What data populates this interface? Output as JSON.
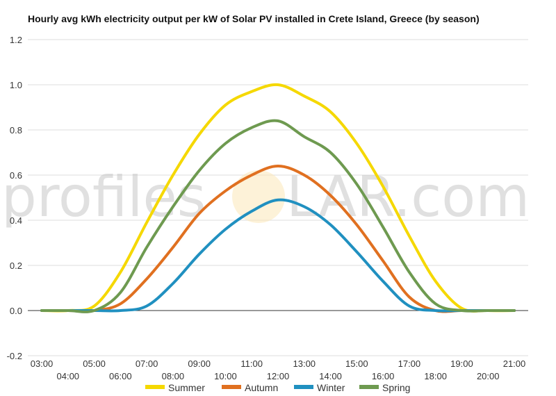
{
  "chart_data": {
    "type": "line",
    "title": "Hourly avg kWh electricity output per kW of Solar PV installed in Crete Island, Greece (by season)",
    "xlabel": "",
    "ylabel": "",
    "ylim": [
      -0.2,
      1.2
    ],
    "yticks": [
      "-0.2",
      "0.0",
      "0.2",
      "0.4",
      "0.6",
      "0.8",
      "1.0",
      "1.2"
    ],
    "x": [
      "03:00",
      "04:00",
      "05:00",
      "06:00",
      "07:00",
      "08:00",
      "09:00",
      "10:00",
      "11:00",
      "12:00",
      "13:00",
      "14:00",
      "15:00",
      "16:00",
      "17:00",
      "18:00",
      "19:00",
      "20:00",
      "21:00"
    ],
    "grid": true,
    "legend": "bottom",
    "series": [
      {
        "name": "Summer",
        "color": "#f5d800",
        "values": [
          0.0,
          0.0,
          0.02,
          0.17,
          0.39,
          0.6,
          0.78,
          0.91,
          0.97,
          1.0,
          0.95,
          0.88,
          0.74,
          0.55,
          0.33,
          0.13,
          0.01,
          0.0,
          0.0
        ]
      },
      {
        "name": "Autumn",
        "color": "#e07020",
        "values": [
          0.0,
          0.0,
          0.0,
          0.03,
          0.14,
          0.28,
          0.43,
          0.53,
          0.6,
          0.64,
          0.6,
          0.51,
          0.38,
          0.22,
          0.06,
          0.0,
          0.0,
          0.0,
          0.0
        ]
      },
      {
        "name": "Winter",
        "color": "#2090c0",
        "values": [
          0.0,
          0.0,
          0.0,
          0.0,
          0.02,
          0.12,
          0.25,
          0.36,
          0.44,
          0.49,
          0.46,
          0.38,
          0.26,
          0.13,
          0.02,
          0.0,
          0.0,
          0.0,
          0.0
        ]
      },
      {
        "name": "Spring",
        "color": "#6e9a50",
        "values": [
          0.0,
          0.0,
          0.0,
          0.08,
          0.28,
          0.46,
          0.62,
          0.74,
          0.81,
          0.84,
          0.77,
          0.7,
          0.56,
          0.37,
          0.17,
          0.03,
          0.0,
          0.0,
          0.0
        ]
      }
    ]
  },
  "watermark": {
    "left": "profiles",
    "right": "LAR.com"
  }
}
